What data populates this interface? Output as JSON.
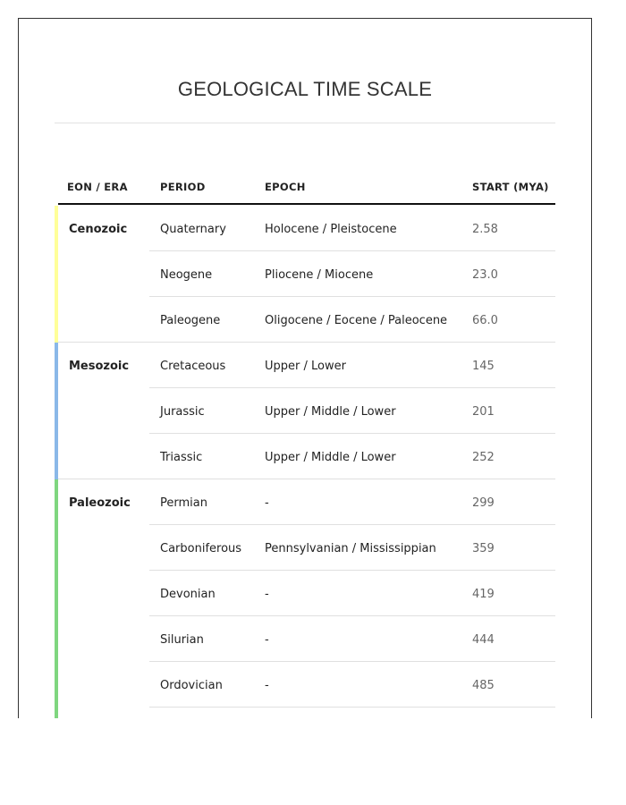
{
  "title": "GEOLOGICAL TIME SCALE",
  "columns": [
    "EON / ERA",
    "PERIOD",
    "EPOCH",
    "START (MYA)"
  ],
  "eras": [
    {
      "name": "Cenozoic",
      "color": "#ffff99",
      "periods": [
        {
          "period": "Quaternary",
          "epoch": "Holocene / Pleistocene",
          "start": "2.58"
        },
        {
          "period": "Neogene",
          "epoch": "Pliocene / Miocene",
          "start": "23.0"
        },
        {
          "period": "Paleogene",
          "epoch": "Oligocene / Eocene / Paleocene",
          "start": "66.0"
        }
      ]
    },
    {
      "name": "Mesozoic",
      "color": "#8ab8e8",
      "periods": [
        {
          "period": "Cretaceous",
          "epoch": "Upper / Lower",
          "start": "145"
        },
        {
          "period": "Jurassic",
          "epoch": "Upper / Middle / Lower",
          "start": "201"
        },
        {
          "period": "Triassic",
          "epoch": "Upper / Middle / Lower",
          "start": "252"
        }
      ]
    },
    {
      "name": "Paleozoic",
      "color": "#7fd67f",
      "periods": [
        {
          "period": "Permian",
          "epoch": "-",
          "start": "299"
        },
        {
          "period": "Carboniferous",
          "epoch": "Pennsylvanian / Mississippian",
          "start": "359"
        },
        {
          "period": "Devonian",
          "epoch": "-",
          "start": "419"
        },
        {
          "period": "Silurian",
          "epoch": "-",
          "start": "444"
        },
        {
          "period": "Ordovician",
          "epoch": "-",
          "start": "485"
        }
      ]
    }
  ]
}
